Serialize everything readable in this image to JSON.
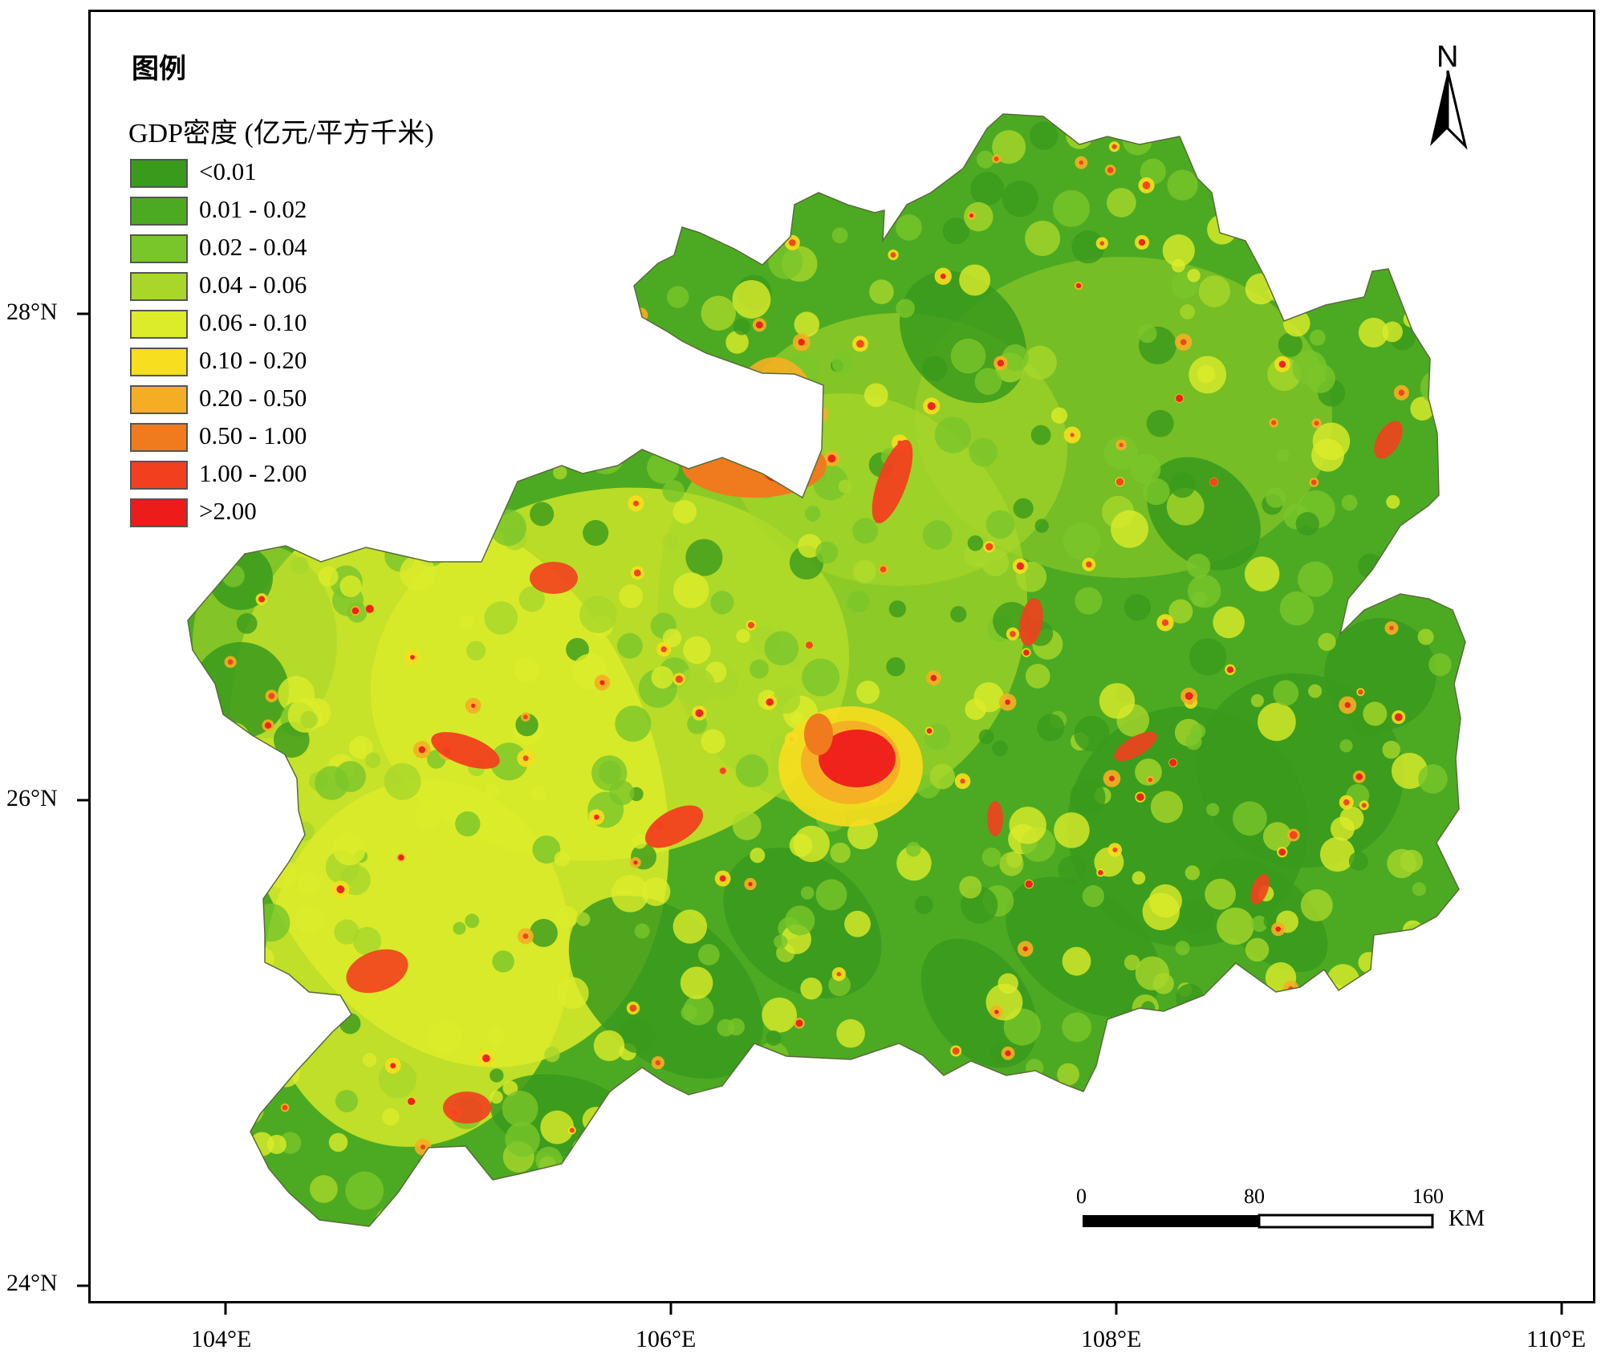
{
  "legend": {
    "title": "图例",
    "subtitle": "GDP密度 (亿元/平方千米)",
    "items": [
      {
        "label": "<0.01",
        "color": "#3a9a1c"
      },
      {
        "label": "0.01 - 0.02",
        "color": "#4caa22"
      },
      {
        "label": "0.02 - 0.04",
        "color": "#79c62b"
      },
      {
        "label": "0.04 - 0.06",
        "color": "#a8d72a"
      },
      {
        "label": "0.06 - 0.10",
        "color": "#dcec2a"
      },
      {
        "label": "0.10 - 0.20",
        "color": "#f7de1e"
      },
      {
        "label": "0.20 - 0.50",
        "color": "#f5ae24"
      },
      {
        "label": "0.50 - 1.00",
        "color": "#f07a1e"
      },
      {
        "label": "1.00 - 2.00",
        "color": "#f2401e"
      },
      {
        "label": ">2.00",
        "color": "#ee1b1b"
      }
    ]
  },
  "north_arrow": {
    "label": "N",
    "icon": "north-arrow-icon"
  },
  "axes": {
    "latitude": [
      "28°N",
      "26°N",
      "24°N"
    ],
    "longitude": [
      "104°E",
      "106°E",
      "108°E",
      "110°E"
    ]
  },
  "scale_bar": {
    "ticks": [
      "0",
      "80",
      "160"
    ],
    "unit": "KM"
  }
}
